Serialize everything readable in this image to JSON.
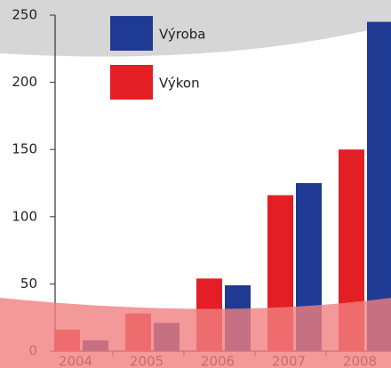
{
  "chart_data": {
    "type": "bar",
    "categories": [
      "2004",
      "2005",
      "2006",
      "2007",
      "2008"
    ],
    "series": [
      {
        "name": "Výkon",
        "color": "#e31e24",
        "values": [
          16,
          28,
          54,
          116,
          150
        ]
      },
      {
        "name": "Výroba",
        "color": "#1f3a93",
        "values": [
          8,
          21,
          49,
          125,
          245
        ]
      }
    ],
    "ylim": [
      0,
      250
    ],
    "yticks": [
      0,
      50,
      100,
      150,
      200,
      250
    ]
  }
}
